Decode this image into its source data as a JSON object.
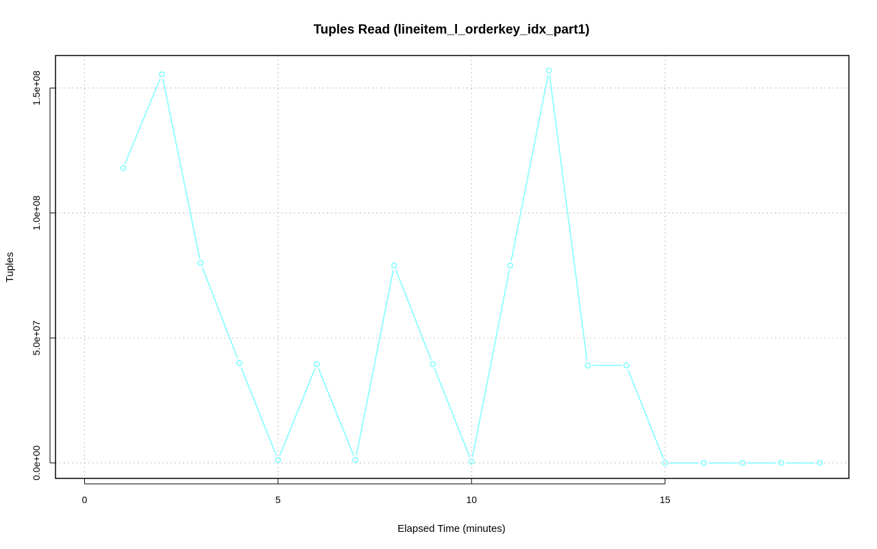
{
  "chart_data": {
    "type": "line",
    "title": "Tuples Read (lineitem_l_orderkey_idx_part1)",
    "xlabel": "Elapsed Time (minutes)",
    "ylabel": "Tuples",
    "xlim": [
      -0.75,
      19.75
    ],
    "ylim": [
      -6200000,
      163000000
    ],
    "x_ticks": [
      0,
      5,
      10,
      15
    ],
    "x_tick_labels": [
      "0",
      "5",
      "10",
      "15"
    ],
    "y_ticks": [
      0,
      50000000,
      100000000,
      150000000
    ],
    "y_tick_labels": [
      "0.0e+00",
      "5.0e+07",
      "1.0e+08",
      "1.5e+08"
    ],
    "grid": true,
    "series": [
      {
        "color": "#7fffff",
        "marker": "open-circle",
        "x": [
          1,
          2,
          3,
          4,
          5,
          6,
          7,
          8,
          9,
          10,
          11,
          12,
          13,
          14,
          15,
          16,
          17,
          18,
          19
        ],
        "y": [
          118000000,
          155500000,
          80000000,
          40000000,
          1200000,
          39500000,
          1200000,
          79000000,
          39500000,
          500000,
          79000000,
          157000000,
          39000000,
          39000000,
          0,
          0,
          0,
          0,
          0
        ]
      }
    ]
  }
}
